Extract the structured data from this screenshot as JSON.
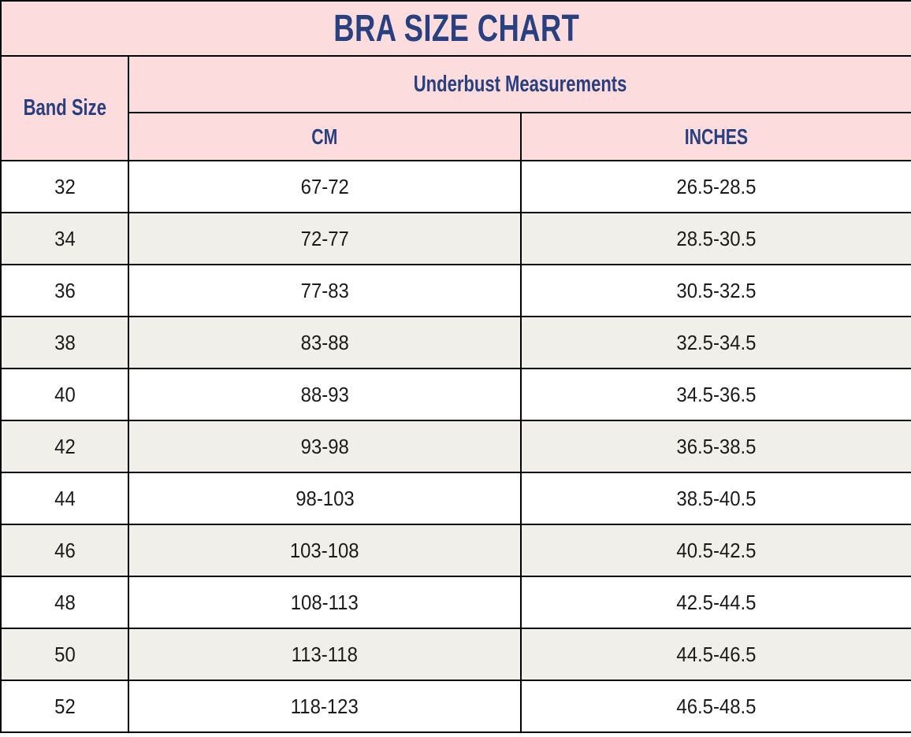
{
  "title": "BRA SIZE CHART",
  "colors": {
    "header_background": "#fcdcdc",
    "header_text": "#283f80",
    "row_alternate_background": "#f1efe9",
    "row_background": "#ffffff",
    "grid_border": "#000000",
    "data_text": "#1b1b1b"
  },
  "table": {
    "band_size_header": "Band Size",
    "underbust_header": "Underbust Measurements",
    "cm_header": "CM",
    "inches_header": "INCHES",
    "rows": [
      {
        "band": "32",
        "cm": "67-72",
        "inches": "26.5-28.5"
      },
      {
        "band": "34",
        "cm": "72-77",
        "inches": "28.5-30.5"
      },
      {
        "band": "36",
        "cm": "77-83",
        "inches": "30.5-32.5"
      },
      {
        "band": "38",
        "cm": "83-88",
        "inches": "32.5-34.5"
      },
      {
        "band": "40",
        "cm": "88-93",
        "inches": "34.5-36.5"
      },
      {
        "band": "42",
        "cm": "93-98",
        "inches": "36.5-38.5"
      },
      {
        "band": "44",
        "cm": "98-103",
        "inches": "38.5-40.5"
      },
      {
        "band": "46",
        "cm": "103-108",
        "inches": "40.5-42.5"
      },
      {
        "band": "48",
        "cm": "108-113",
        "inches": "42.5-44.5"
      },
      {
        "band": "50",
        "cm": "113-118",
        "inches": "44.5-46.5"
      },
      {
        "band": "52",
        "cm": "118-123",
        "inches": "46.5-48.5"
      }
    ]
  },
  "chart_data": {
    "type": "table",
    "title": "BRA SIZE CHART",
    "columns": [
      "Band Size",
      "Underbust CM",
      "Underbust INCHES"
    ],
    "rows": [
      [
        "32",
        "67-72",
        "26.5-28.5"
      ],
      [
        "34",
        "72-77",
        "28.5-30.5"
      ],
      [
        "36",
        "77-83",
        "30.5-32.5"
      ],
      [
        "38",
        "83-88",
        "32.5-34.5"
      ],
      [
        "40",
        "88-93",
        "34.5-36.5"
      ],
      [
        "42",
        "93-98",
        "36.5-38.5"
      ],
      [
        "44",
        "98-103",
        "38.5-40.5"
      ],
      [
        "46",
        "103-108",
        "40.5-42.5"
      ],
      [
        "48",
        "108-113",
        "42.5-44.5"
      ],
      [
        "50",
        "113-118",
        "44.5-46.5"
      ],
      [
        "52",
        "118-123",
        "46.5-48.5"
      ]
    ]
  }
}
